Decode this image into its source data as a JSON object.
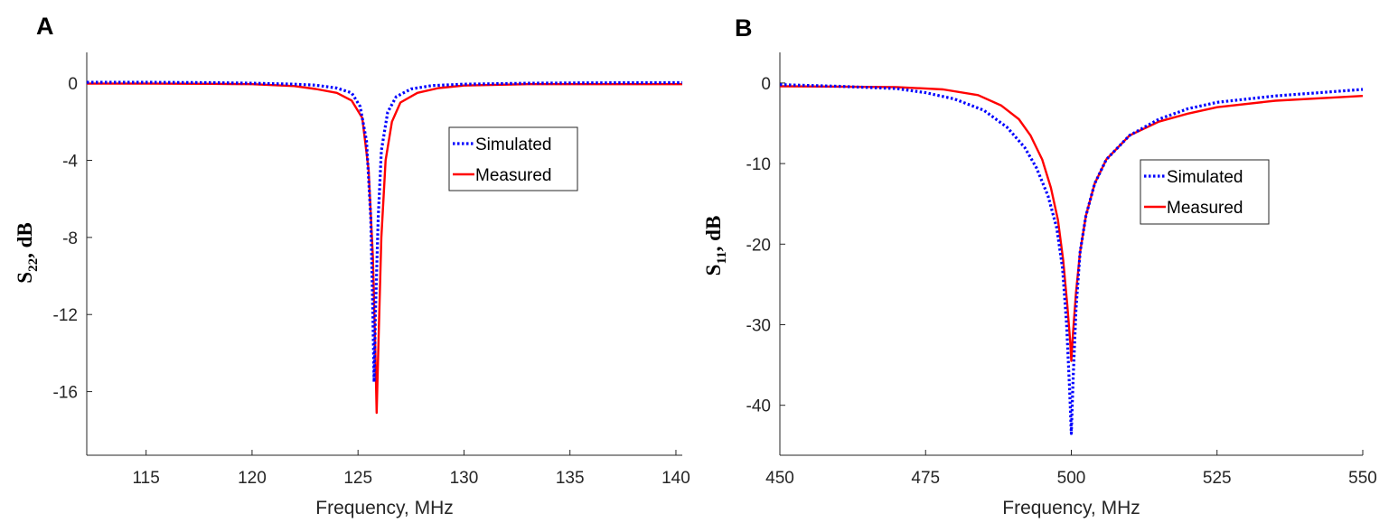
{
  "chart_data": [
    {
      "type": "line",
      "panel_label": "A",
      "xlabel": "Frequency, MHz",
      "ylabel_main": "S",
      "ylabel_sub": "22",
      "ylabel_tail": ", dB",
      "xlim": [
        112.2,
        140.3
      ],
      "ylim": [
        -19.3,
        1.6
      ],
      "x_ticks": [
        115,
        120,
        125,
        130,
        135,
        140
      ],
      "x_tick_labels": [
        "115",
        "120",
        "125",
        "130",
        "135",
        "140"
      ],
      "y_ticks": [
        0,
        -4,
        -8,
        -12,
        -16
      ],
      "y_tick_labels": [
        "0",
        "-4",
        "-8",
        "-12",
        "-16"
      ],
      "legend": {
        "position": "center-right",
        "entries": [
          "Simulated",
          "Measured"
        ]
      },
      "series": [
        {
          "name": "Simulated",
          "color": "#0000ff",
          "style": "dotted",
          "points": [
            [
              112.2,
              0.05
            ],
            [
              115,
              0.05
            ],
            [
              118,
              0.03
            ],
            [
              120,
              0.0
            ],
            [
              122,
              -0.05
            ],
            [
              123,
              -0.1
            ],
            [
              124,
              -0.25
            ],
            [
              124.7,
              -0.5
            ],
            [
              125.1,
              -1.2
            ],
            [
              125.4,
              -3.0
            ],
            [
              125.6,
              -7.0
            ],
            [
              125.7,
              -12.0
            ],
            [
              125.76,
              -15.5
            ],
            [
              125.82,
              -12.0
            ],
            [
              125.95,
              -7.0
            ],
            [
              126.1,
              -3.5
            ],
            [
              126.4,
              -1.5
            ],
            [
              126.8,
              -0.7
            ],
            [
              127.5,
              -0.3
            ],
            [
              128.5,
              -0.12
            ],
            [
              130,
              -0.05
            ],
            [
              133,
              0.0
            ],
            [
              136,
              0.02
            ],
            [
              140.3,
              0.03
            ]
          ]
        },
        {
          "name": "Measured",
          "color": "#ff0000",
          "style": "solid",
          "points": [
            [
              112.2,
              -0.02
            ],
            [
              115,
              -0.02
            ],
            [
              118,
              -0.03
            ],
            [
              120,
              -0.05
            ],
            [
              122,
              -0.15
            ],
            [
              123,
              -0.3
            ],
            [
              124,
              -0.5
            ],
            [
              124.7,
              -0.9
            ],
            [
              125.2,
              -1.8
            ],
            [
              125.5,
              -4.5
            ],
            [
              125.7,
              -9.0
            ],
            [
              125.82,
              -14.0
            ],
            [
              125.88,
              -17.1
            ],
            [
              125.95,
              -14.0
            ],
            [
              126.1,
              -8.0
            ],
            [
              126.3,
              -4.0
            ],
            [
              126.6,
              -2.0
            ],
            [
              127,
              -1.0
            ],
            [
              127.8,
              -0.5
            ],
            [
              128.8,
              -0.25
            ],
            [
              130,
              -0.12
            ],
            [
              133,
              -0.05
            ],
            [
              136,
              -0.05
            ],
            [
              140.3,
              -0.05
            ]
          ]
        }
      ]
    },
    {
      "type": "line",
      "panel_label": "B",
      "xlabel": "Frequency, MHz",
      "ylabel_main": "S",
      "ylabel_sub": "11",
      "ylabel_tail": ", dB",
      "xlim": [
        450,
        550
      ],
      "ylim": [
        -46.2,
        3.8
      ],
      "x_ticks": [
        450,
        475,
        500,
        525,
        550
      ],
      "x_tick_labels": [
        "450",
        "475",
        "500",
        "525",
        "550"
      ],
      "y_ticks": [
        0,
        -10,
        -20,
        -30,
        -40
      ],
      "y_tick_labels": [
        "0",
        "-10",
        "-20",
        "-30",
        "-40"
      ],
      "legend": {
        "position": "center-right",
        "entries": [
          "Simulated",
          "Measured"
        ]
      },
      "series": [
        {
          "name": "Simulated",
          "color": "#0000ff",
          "style": "dotted",
          "points": [
            [
              450,
              -0.2
            ],
            [
              460,
              -0.4
            ],
            [
              470,
              -0.7
            ],
            [
              475,
              -1.2
            ],
            [
              480,
              -2.0
            ],
            [
              485,
              -3.4
            ],
            [
              489,
              -5.5
            ],
            [
              492,
              -8.0
            ],
            [
              494,
              -10.5
            ],
            [
              496,
              -14.0
            ],
            [
              497.5,
              -18.0
            ],
            [
              498.5,
              -23.0
            ],
            [
              499.2,
              -30.0
            ],
            [
              499.7,
              -38.0
            ],
            [
              500,
              -43.5
            ],
            [
              500.3,
              -37.0
            ],
            [
              500.8,
              -28.0
            ],
            [
              501.5,
              -21.0
            ],
            [
              502.5,
              -16.5
            ],
            [
              504,
              -12.5
            ],
            [
              506,
              -9.5
            ],
            [
              510,
              -6.5
            ],
            [
              515,
              -4.5
            ],
            [
              520,
              -3.2
            ],
            [
              525,
              -2.4
            ],
            [
              535,
              -1.6
            ],
            [
              550,
              -0.8
            ]
          ]
        },
        {
          "name": "Measured",
          "color": "#ff0000",
          "style": "solid",
          "points": [
            [
              450,
              -0.4
            ],
            [
              460,
              -0.45
            ],
            [
              470,
              -0.5
            ],
            [
              478,
              -0.8
            ],
            [
              484,
              -1.5
            ],
            [
              488,
              -2.8
            ],
            [
              491,
              -4.5
            ],
            [
              493,
              -6.5
            ],
            [
              495,
              -9.5
            ],
            [
              496.5,
              -13.0
            ],
            [
              497.7,
              -17.0
            ],
            [
              498.6,
              -22.0
            ],
            [
              499.3,
              -27.5
            ],
            [
              499.8,
              -32.0
            ],
            [
              500,
              -34.5
            ],
            [
              500.3,
              -31.0
            ],
            [
              500.8,
              -26.0
            ],
            [
              501.5,
              -21.0
            ],
            [
              502.5,
              -16.5
            ],
            [
              504,
              -12.5
            ],
            [
              506,
              -9.5
            ],
            [
              510,
              -6.5
            ],
            [
              515,
              -4.8
            ],
            [
              520,
              -3.8
            ],
            [
              525,
              -3.0
            ],
            [
              535,
              -2.2
            ],
            [
              550,
              -1.6
            ]
          ]
        }
      ]
    }
  ]
}
